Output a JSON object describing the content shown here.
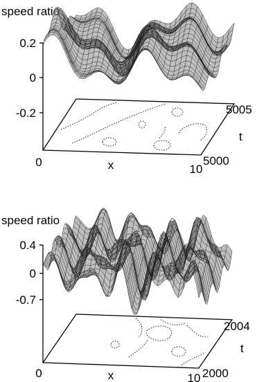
{
  "panels": [
    {
      "zlabel": "speed ratio",
      "z_ticks": [
        "0.2",
        "0",
        "-0.2"
      ],
      "x_ticks": [
        "0",
        "10"
      ],
      "x_label": "x",
      "t_ticks": [
        "5000",
        "5005"
      ],
      "t_label": "t"
    },
    {
      "zlabel": "speed ratio",
      "z_ticks": [
        "0.4",
        "0",
        "-0.7"
      ],
      "x_ticks": [
        "0",
        "10"
      ],
      "x_label": "x",
      "t_ticks": [
        "2000",
        "2004"
      ],
      "t_label": "t"
    }
  ],
  "chart_data": [
    {
      "type": "surface",
      "title": "",
      "xlabel": "x",
      "ylabel": "t",
      "zlabel": "speed ratio",
      "xlim": [
        0,
        10
      ],
      "ylim": [
        5000,
        5005
      ],
      "zticks": [
        0.2,
        0,
        -0.2
      ],
      "projection": "contour at base"
    },
    {
      "type": "surface",
      "title": "",
      "xlabel": "x",
      "ylabel": "t",
      "zlabel": "speed ratio",
      "xlim": [
        0,
        10
      ],
      "ylim": [
        2000,
        2004
      ],
      "zticks": [
        0.4,
        0,
        -0.7
      ],
      "projection": "contour at base"
    }
  ]
}
